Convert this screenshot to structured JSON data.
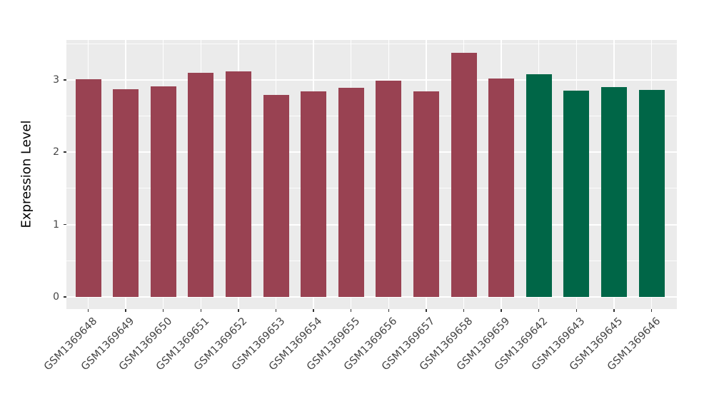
{
  "chart_data": {
    "type": "bar",
    "title": "",
    "xlabel": "",
    "ylabel": "Expression Level",
    "categories": [
      "GSM1369648",
      "GSM1369649",
      "GSM1369650",
      "GSM1369651",
      "GSM1369652",
      "GSM1369653",
      "GSM1369654",
      "GSM1369655",
      "GSM1369656",
      "GSM1369657",
      "GSM1369658",
      "GSM1369659",
      "GSM1369642",
      "GSM1369643",
      "GSM1369645",
      "GSM1369646"
    ],
    "values": [
      3.01,
      2.87,
      2.91,
      3.1,
      3.12,
      2.79,
      2.84,
      2.89,
      2.99,
      2.84,
      3.37,
      3.02,
      3.08,
      2.85,
      2.9,
      2.86
    ],
    "groups": [
      "group1",
      "group1",
      "group1",
      "group1",
      "group1",
      "group1",
      "group1",
      "group1",
      "group1",
      "group1",
      "group1",
      "group1",
      "group2",
      "group2",
      "group2",
      "group2"
    ],
    "group_colors": {
      "group1": "#994252",
      "group2": "#006647"
    },
    "yticks_major": [
      0,
      1,
      2,
      3
    ],
    "yticks_minor": [
      0.5,
      1.5,
      2.5,
      3.5
    ],
    "ytick_labels": [
      "0",
      "1",
      "2",
      "3"
    ],
    "ylim": [
      -0.17,
      3.55
    ],
    "grid": "major and minor horizontal white lines, vertical white line per category",
    "panel_bg": "#EBEBEB",
    "legend_position": "none",
    "x_label_rotation_deg": 45
  }
}
